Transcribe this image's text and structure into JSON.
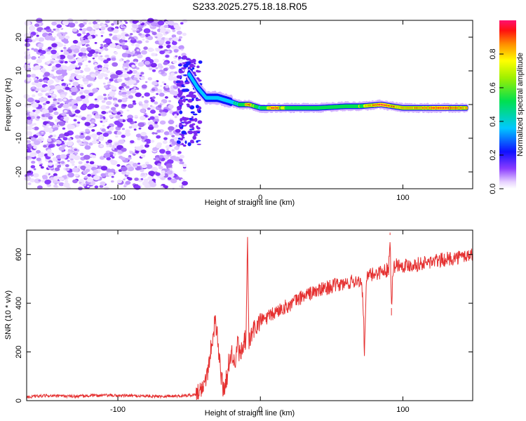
{
  "title": "S233.2025.275.18.18.R05",
  "colors": {
    "line": "#e53030",
    "frame": "#000000"
  },
  "chart_data": [
    {
      "type": "heatmap",
      "title": "S233.2025.275.18.18.R05",
      "xlabel": "Height of straight line (km)",
      "ylabel": "Frequency (Hz)",
      "xlim": [
        -164,
        149
      ],
      "ylim": [
        -25,
        25
      ],
      "xticks": [
        -100,
        0,
        100
      ],
      "yticks": [
        -20,
        -10,
        0,
        10,
        20
      ],
      "colorbar": {
        "label": "Normalized spectral amplitude",
        "ticks": [
          0.0,
          0.2,
          0.4,
          0.6,
          0.8
        ],
        "range": [
          0,
          1
        ]
      },
      "noise_region_x": [
        -164,
        -53
      ],
      "ridge": [
        {
          "x": -50,
          "f": 9,
          "amp": 0.2
        },
        {
          "x": -44,
          "f": 5,
          "amp": 0.25
        },
        {
          "x": -38,
          "f": 2,
          "amp": 0.3
        },
        {
          "x": -30,
          "f": 2,
          "amp": 0.35
        },
        {
          "x": -22,
          "f": 1,
          "amp": 0.4
        },
        {
          "x": -15,
          "f": 0,
          "amp": 0.5
        },
        {
          "x": -8,
          "f": 0,
          "amp": 0.85
        },
        {
          "x": 0,
          "f": -1,
          "amp": 0.5
        },
        {
          "x": 5,
          "f": -1,
          "amp": 0.7
        },
        {
          "x": 10,
          "f": -1,
          "amp": 0.9
        },
        {
          "x": 20,
          "f": -1,
          "amp": 0.55
        },
        {
          "x": 40,
          "f": -1,
          "amp": 0.6
        },
        {
          "x": 60,
          "f": -0.5,
          "amp": 0.55
        },
        {
          "x": 70,
          "f": -0.5,
          "amp": 0.65
        },
        {
          "x": 85,
          "f": 0,
          "amp": 0.95
        },
        {
          "x": 100,
          "f": -1,
          "amp": 0.75
        },
        {
          "x": 115,
          "f": -1,
          "amp": 0.85
        },
        {
          "x": 130,
          "f": -1,
          "amp": 0.95
        },
        {
          "x": 145,
          "f": -1,
          "amp": 0.8
        }
      ]
    },
    {
      "type": "line",
      "xlabel": "Height of straight line (km)",
      "ylabel": "SNR (10 * v/v)",
      "xlim": [
        -164,
        149
      ],
      "ylim": [
        0,
        700
      ],
      "xticks": [
        -100,
        0,
        100
      ],
      "yticks": [
        0,
        200,
        400,
        600
      ],
      "series": [
        {
          "name": "SNR",
          "x": [
            -164,
            -150,
            -130,
            -110,
            -90,
            -70,
            -55,
            -45,
            -40,
            -36,
            -34,
            -32,
            -30,
            -28,
            -26,
            -24,
            -22,
            -20,
            -18,
            -16,
            -14,
            -12,
            -10,
            -9,
            -8,
            -6,
            -4,
            -2,
            0,
            5,
            10,
            15,
            20,
            25,
            30,
            35,
            40,
            45,
            50,
            55,
            60,
            65,
            70,
            72,
            73,
            74,
            75,
            80,
            85,
            90,
            91,
            92,
            93,
            95,
            100,
            110,
            120,
            130,
            140,
            149
          ],
          "y": [
            15,
            20,
            18,
            22,
            20,
            18,
            20,
            25,
            60,
            150,
            250,
            320,
            260,
            120,
            50,
            80,
            160,
            200,
            140,
            230,
            180,
            220,
            260,
            640,
            240,
            270,
            300,
            310,
            330,
            340,
            360,
            380,
            390,
            410,
            430,
            440,
            450,
            460,
            470,
            475,
            480,
            490,
            495,
            420,
            200,
            420,
            510,
            520,
            530,
            540,
            680,
            380,
            540,
            560,
            555,
            560,
            570,
            580,
            590,
            600
          ]
        }
      ]
    }
  ]
}
